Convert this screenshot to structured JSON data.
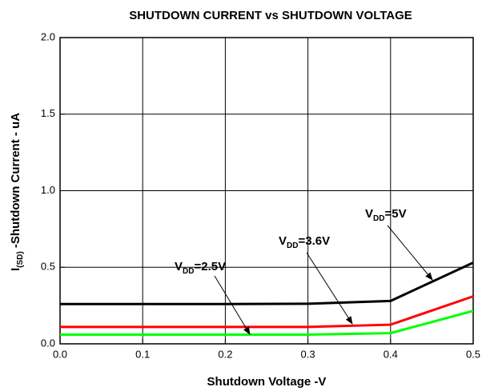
{
  "chart_data": {
    "type": "line",
    "title": "SHUTDOWN CURRENT vs SHUTDOWN VOLTAGE",
    "xlabel": "Shutdown Voltage -V",
    "ylabel": [
      "I",
      "(SD)",
      " -Shutdown Current - uA"
    ],
    "x": [
      0,
      0.1,
      0.2,
      0.3,
      0.4,
      0.5
    ],
    "series": [
      {
        "label": [
          "V",
          "DD",
          "=5V"
        ],
        "color": "#000000",
        "values": [
          0.26,
          0.26,
          0.26,
          0.262,
          0.28,
          0.53
        ]
      },
      {
        "label": [
          "V",
          "DD",
          "=3.6V"
        ],
        "color": "#ff0000",
        "values": [
          0.11,
          0.11,
          0.11,
          0.11,
          0.125,
          0.31
        ]
      },
      {
        "label": [
          "V",
          "DD",
          "=2.5V"
        ],
        "color": "#00ff00",
        "values": [
          0.06,
          0.06,
          0.06,
          0.06,
          0.07,
          0.215
        ]
      }
    ],
    "xlim": [
      0,
      0.5
    ],
    "xticks": [
      {
        "value": 0,
        "label": "0.0"
      },
      {
        "value": 0.1,
        "label": "0.1"
      },
      {
        "value": 0.2,
        "label": "0.2"
      },
      {
        "value": 0.3,
        "label": "0.3"
      },
      {
        "value": 0.4,
        "label": "0.4"
      },
      {
        "value": 0.5,
        "label": "0.5"
      }
    ],
    "ylim": [
      0,
      2
    ],
    "yticks": [
      {
        "value": 0,
        "label": "0.0"
      },
      {
        "value": 0.5,
        "label": "0.5"
      },
      {
        "value": 1,
        "label": "1.0"
      },
      {
        "value": 1.5,
        "label": "1.5"
      },
      {
        "value": 2,
        "label": "2.0"
      }
    ],
    "grid": true
  }
}
